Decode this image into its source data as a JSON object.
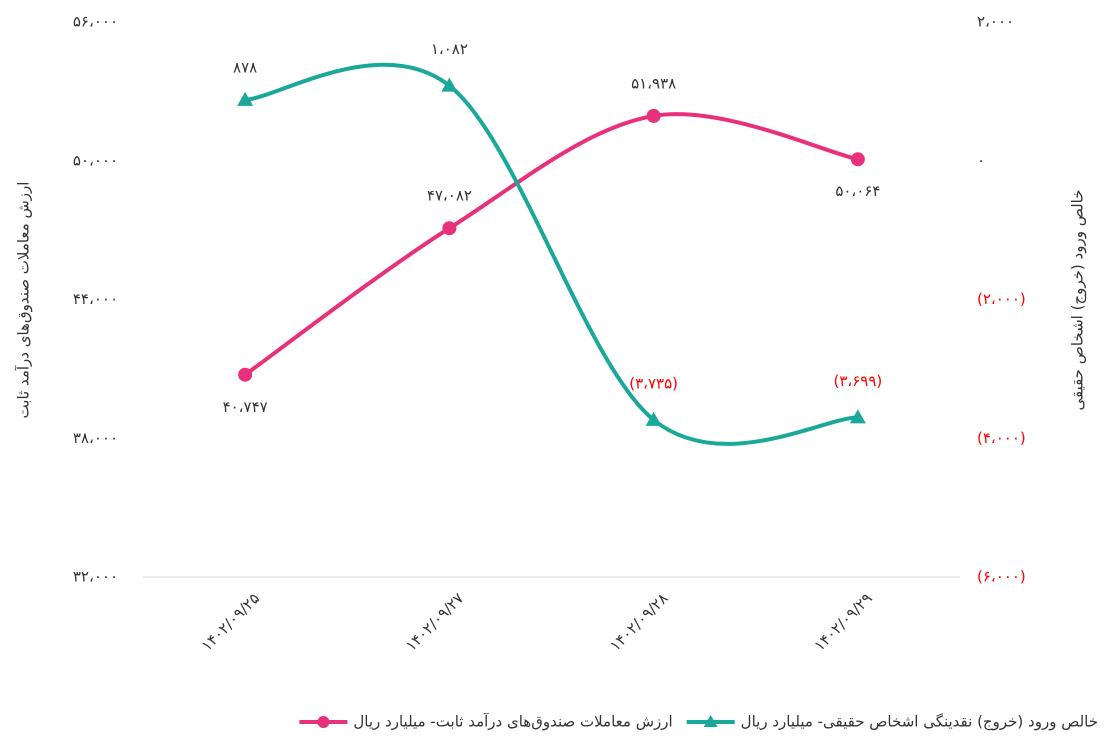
{
  "chart_data": {
    "type": "line",
    "y_label": "ارزش معاملات صندوق‌های درآمد ثابت",
    "y2_label": "خالص ورود (خروج) اشخاص حقیقی",
    "categories": [
      "۱۴۰۲/۰۹/۲۵",
      "۱۴۰۲/۰۹/۲۷",
      "۱۴۰۲/۰۹/۲۸",
      "۱۴۰۲/۰۹/۲۹"
    ],
    "ylim": [
      32000,
      56000
    ],
    "yticks": [
      {
        "value": 32000,
        "label": "۳۲،۰۰۰"
      },
      {
        "value": 38000,
        "label": "۳۸،۰۰۰"
      },
      {
        "value": 44000,
        "label": "۴۴،۰۰۰"
      },
      {
        "value": 50000,
        "label": "۵۰،۰۰۰"
      },
      {
        "value": 56000,
        "label": "۵۶،۰۰۰"
      }
    ],
    "y2lim": [
      -6000,
      2000
    ],
    "y2ticks": [
      {
        "value": -6000,
        "label": "(۶،۰۰۰)"
      },
      {
        "value": -4000,
        "label": "(۴،۰۰۰)"
      },
      {
        "value": -2000,
        "label": "(۲،۰۰۰)"
      },
      {
        "value": 0,
        "label": "۰"
      },
      {
        "value": 2000,
        "label": "۲،۰۰۰"
      }
    ],
    "negative_label_color": "#ff0000",
    "grid": false,
    "legend": "bottom",
    "series": [
      {
        "name": "ارزش معاملات صندوق‌های درآمد ثابت- میلیارد ریال",
        "color": "#e8317a",
        "marker": "circle",
        "values": [
          40747,
          47082,
          51938,
          50064
        ],
        "value_labels": [
          "۴۰،۷۴۷",
          "۴۷،۰۸۲",
          "۵۱،۹۳۸",
          "۵۰،۰۶۴"
        ]
      },
      {
        "name": "خالص ورود (خروج) نقدینگی اشخاص حقیقی- میلیارد ریال",
        "color": "#1aa89a",
        "marker": "triangle",
        "axis": "y2",
        "values": [
          878,
          1082,
          -3735,
          -3699
        ],
        "value_labels": [
          "۸۷۸",
          "۱،۰۸۲",
          "(۳،۷۳۵)",
          "(۳،۶۹۹)"
        ]
      }
    ]
  }
}
